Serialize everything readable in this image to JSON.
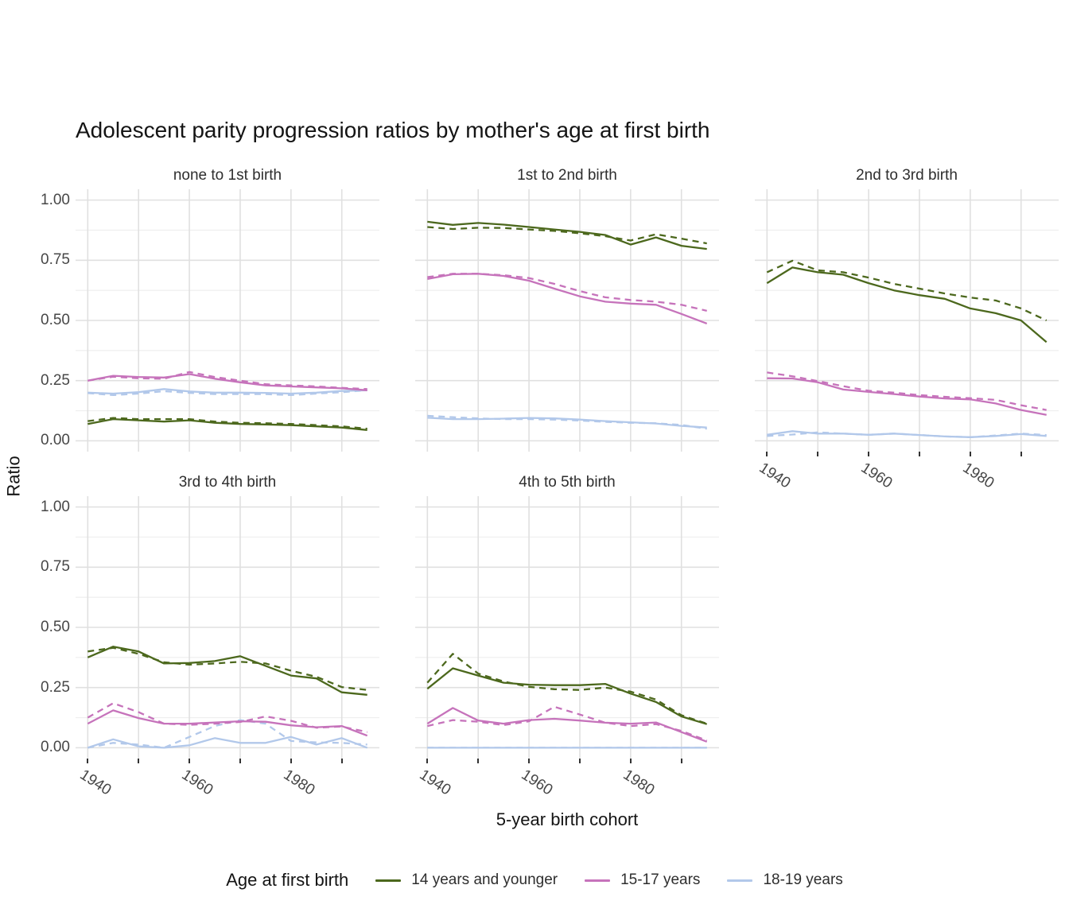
{
  "title": "Adolescent parity progression ratios by mother's age at first birth",
  "y_axis": {
    "label": "Ratio"
  },
  "x_axis": {
    "label": "5-year birth cohort"
  },
  "legend": {
    "title": "Age at first birth",
    "entries": [
      {
        "label": "14 years and younger",
        "color": "#4c681d"
      },
      {
        "label": "15-17 years",
        "color": "#c673bb"
      },
      {
        "label": "18-19 years",
        "color": "#b2c8ea"
      }
    ]
  },
  "chart_data": {
    "type": "line",
    "x": [
      1940,
      1945,
      1950,
      1955,
      1960,
      1965,
      1970,
      1975,
      1980,
      1985,
      1990,
      1995
    ],
    "xlim": [
      1937.6,
      1997.4
    ],
    "ylim": [
      -0.045,
      1.045
    ],
    "x_gridlines": [
      1940,
      1950,
      1960,
      1970,
      1980,
      1990
    ],
    "x_labeled_breaks": [
      {
        "value": 1940,
        "label": "1940"
      },
      {
        "value": 1960,
        "label": "1960"
      },
      {
        "value": 1980,
        "label": "1980"
      }
    ],
    "y_major": [
      {
        "value": 1.0,
        "label": "1.00"
      },
      {
        "value": 0.75,
        "label": "0.75"
      },
      {
        "value": 0.5,
        "label": "0.50"
      },
      {
        "value": 0.25,
        "label": "0.25"
      },
      {
        "value": 0.0,
        "label": "0.00"
      }
    ],
    "y_minor": [
      0.875,
      0.625,
      0.375,
      0.125
    ],
    "grid_major_color": "#e0e0e0",
    "grid_minor_color": "#eeeeee",
    "tick_color": "#333333",
    "colors": {
      "14 years and younger": "#4c681d",
      "15-17 years": "#c673bb",
      "18-19 years": "#b2c8ea"
    },
    "facets": [
      {
        "title": "none to 1st birth",
        "show_x_axis": false,
        "series": [
          {
            "group": "18-19 years",
            "linetype": "dashed",
            "values": [
              0.198,
              0.19,
              0.196,
              0.206,
              0.199,
              0.194,
              0.194,
              0.194,
              0.19,
              0.196,
              0.202,
              0.21
            ]
          },
          {
            "group": "18-19 years",
            "linetype": "solid",
            "values": [
              0.2,
              0.196,
              0.202,
              0.215,
              0.205,
              0.2,
              0.2,
              0.199,
              0.196,
              0.2,
              0.207,
              0.21
            ]
          },
          {
            "group": "15-17 years",
            "linetype": "dashed",
            "values": [
              0.25,
              0.266,
              0.26,
              0.258,
              0.286,
              0.265,
              0.25,
              0.235,
              0.23,
              0.226,
              0.22,
              0.215
            ]
          },
          {
            "group": "15-17 years",
            "linetype": "solid",
            "values": [
              0.25,
              0.27,
              0.265,
              0.263,
              0.277,
              0.258,
              0.243,
              0.23,
              0.226,
              0.222,
              0.218,
              0.21
            ]
          },
          {
            "group": "14 years and younger",
            "linetype": "dashed",
            "values": [
              0.082,
              0.095,
              0.09,
              0.09,
              0.09,
              0.08,
              0.075,
              0.073,
              0.07,
              0.065,
              0.06,
              0.05
            ]
          },
          {
            "group": "14 years and younger",
            "linetype": "solid",
            "values": [
              0.07,
              0.09,
              0.085,
              0.08,
              0.085,
              0.075,
              0.07,
              0.068,
              0.065,
              0.06,
              0.055,
              0.045
            ]
          }
        ]
      },
      {
        "title": "1st to 2nd birth",
        "show_x_axis": false,
        "series": [
          {
            "group": "18-19 years",
            "linetype": "dashed",
            "values": [
              0.104,
              0.098,
              0.093,
              0.09,
              0.09,
              0.088,
              0.084,
              0.079,
              0.075,
              0.073,
              0.066,
              0.05
            ]
          },
          {
            "group": "18-19 years",
            "linetype": "solid",
            "values": [
              0.096,
              0.09,
              0.09,
              0.092,
              0.095,
              0.093,
              0.088,
              0.082,
              0.077,
              0.072,
              0.062,
              0.055
            ]
          },
          {
            "group": "15-17 years",
            "linetype": "dashed",
            "values": [
              0.68,
              0.694,
              0.694,
              0.688,
              0.676,
              0.652,
              0.622,
              0.596,
              0.585,
              0.578,
              0.565,
              0.54
            ]
          },
          {
            "group": "15-17 years",
            "linetype": "solid",
            "values": [
              0.672,
              0.692,
              0.694,
              0.685,
              0.665,
              0.632,
              0.6,
              0.578,
              0.57,
              0.565,
              0.527,
              0.487
            ]
          },
          {
            "group": "14 years and younger",
            "linetype": "dashed",
            "values": [
              0.888,
              0.88,
              0.885,
              0.884,
              0.878,
              0.872,
              0.862,
              0.85,
              0.832,
              0.858,
              0.84,
              0.82
            ]
          },
          {
            "group": "14 years and younger",
            "linetype": "solid",
            "values": [
              0.91,
              0.897,
              0.905,
              0.898,
              0.888,
              0.878,
              0.868,
              0.855,
              0.815,
              0.845,
              0.81,
              0.797
            ]
          }
        ]
      },
      {
        "title": "2nd to 3rd birth",
        "show_x_axis": true,
        "series": [
          {
            "group": "18-19 years",
            "linetype": "dashed",
            "values": [
              0.02,
              0.026,
              0.035,
              0.03,
              0.025,
              0.03,
              0.024,
              0.018,
              0.015,
              0.022,
              0.03,
              0.024
            ]
          },
          {
            "group": "18-19 years",
            "linetype": "solid",
            "values": [
              0.025,
              0.04,
              0.03,
              0.03,
              0.025,
              0.03,
              0.024,
              0.018,
              0.015,
              0.02,
              0.028,
              0.02
            ]
          },
          {
            "group": "15-17 years",
            "linetype": "dashed",
            "values": [
              0.284,
              0.268,
              0.248,
              0.227,
              0.208,
              0.2,
              0.19,
              0.183,
              0.177,
              0.17,
              0.148,
              0.128
            ]
          },
          {
            "group": "15-17 years",
            "linetype": "solid",
            "values": [
              0.26,
              0.259,
              0.243,
              0.213,
              0.203,
              0.194,
              0.184,
              0.176,
              0.172,
              0.155,
              0.128,
              0.108
            ]
          },
          {
            "group": "14 years and younger",
            "linetype": "dashed",
            "values": [
              0.7,
              0.748,
              0.708,
              0.7,
              0.678,
              0.652,
              0.632,
              0.612,
              0.595,
              0.583,
              0.55,
              0.5
            ]
          },
          {
            "group": "14 years and younger",
            "linetype": "solid",
            "values": [
              0.655,
              0.72,
              0.7,
              0.69,
              0.655,
              0.625,
              0.605,
              0.59,
              0.55,
              0.53,
              0.5,
              0.41
            ]
          }
        ]
      },
      {
        "title": "3rd to 4th birth",
        "show_x_axis": true,
        "series": [
          {
            "group": "18-19 years",
            "linetype": "dashed",
            "values": [
              0.0,
              0.02,
              0.013,
              0.0,
              0.045,
              0.09,
              0.115,
              0.1,
              0.028,
              0.022,
              0.02,
              0.013
            ]
          },
          {
            "group": "18-19 years",
            "linetype": "solid",
            "values": [
              0.0,
              0.035,
              0.006,
              0.0,
              0.01,
              0.04,
              0.02,
              0.02,
              0.045,
              0.013,
              0.04,
              0.0
            ]
          },
          {
            "group": "15-17 years",
            "linetype": "dashed",
            "values": [
              0.125,
              0.185,
              0.148,
              0.1,
              0.095,
              0.1,
              0.107,
              0.13,
              0.112,
              0.083,
              0.088,
              0.065
            ]
          },
          {
            "group": "15-17 years",
            "linetype": "solid",
            "values": [
              0.1,
              0.155,
              0.123,
              0.1,
              0.1,
              0.105,
              0.11,
              0.108,
              0.093,
              0.085,
              0.09,
              0.05
            ]
          },
          {
            "group": "14 years and younger",
            "linetype": "dashed",
            "values": [
              0.4,
              0.415,
              0.39,
              0.355,
              0.345,
              0.35,
              0.357,
              0.35,
              0.32,
              0.295,
              0.252,
              0.24
            ]
          },
          {
            "group": "14 years and younger",
            "linetype": "solid",
            "values": [
              0.375,
              0.42,
              0.4,
              0.35,
              0.352,
              0.36,
              0.38,
              0.34,
              0.3,
              0.288,
              0.23,
              0.22
            ]
          }
        ]
      },
      {
        "title": "4th to 5th birth",
        "show_x_axis": true,
        "series": [
          {
            "group": "18-19 years",
            "linetype": "dashed",
            "values": [
              0.0,
              0.0,
              0.0,
              0.0,
              0.0,
              0.0,
              0.0,
              0.0,
              0.0,
              0.0,
              0.0,
              0.0
            ]
          },
          {
            "group": "18-19 years",
            "linetype": "solid",
            "values": [
              0.0,
              0.0,
              0.0,
              0.0,
              0.0,
              0.0,
              0.0,
              0.0,
              0.0,
              0.0,
              0.0,
              0.0
            ]
          },
          {
            "group": "15-17 years",
            "linetype": "dashed",
            "values": [
              0.09,
              0.115,
              0.108,
              0.094,
              0.11,
              0.17,
              0.138,
              0.104,
              0.09,
              0.098,
              0.07,
              0.03
            ]
          },
          {
            "group": "15-17 years",
            "linetype": "solid",
            "values": [
              0.1,
              0.165,
              0.113,
              0.1,
              0.115,
              0.12,
              0.113,
              0.104,
              0.1,
              0.105,
              0.065,
              0.025
            ]
          },
          {
            "group": "14 years and younger",
            "linetype": "dashed",
            "values": [
              0.27,
              0.39,
              0.308,
              0.275,
              0.253,
              0.243,
              0.24,
              0.25,
              0.233,
              0.2,
              0.135,
              0.1
            ]
          },
          {
            "group": "14 years and younger",
            "linetype": "solid",
            "values": [
              0.245,
              0.33,
              0.3,
              0.27,
              0.262,
              0.26,
              0.26,
              0.265,
              0.225,
              0.19,
              0.13,
              0.098
            ]
          }
        ]
      }
    ]
  }
}
